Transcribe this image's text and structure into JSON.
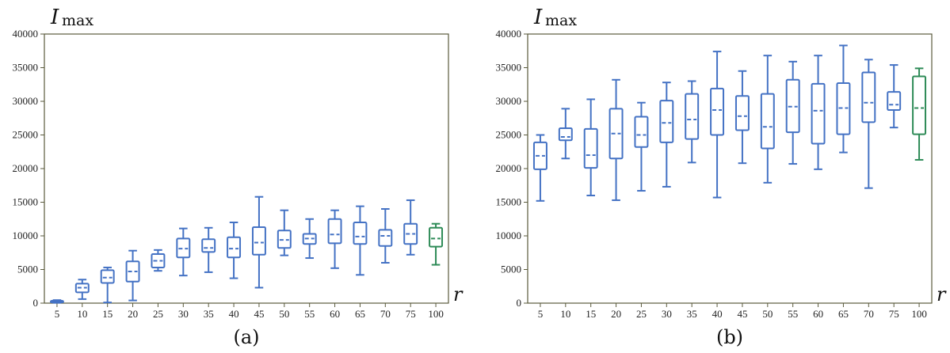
{
  "colors": {
    "box": "#4472C4",
    "box_last": "#2E8B57",
    "frame": "#5a5a3c"
  },
  "chart_data": [
    {
      "panel": "(a)",
      "type": "box",
      "ylabel_main": "I",
      "ylabel_sub": "max",
      "xlabel": "r",
      "ylim": [
        0,
        40000
      ],
      "yticks": [
        0,
        5000,
        10000,
        15000,
        20000,
        25000,
        30000,
        35000,
        40000
      ],
      "categories": [
        "5",
        "10",
        "15",
        "20",
        "25",
        "30",
        "35",
        "40",
        "45",
        "50",
        "55",
        "60",
        "65",
        "70",
        "75",
        "100"
      ],
      "boxes": [
        {
          "min": 50,
          "q1": 150,
          "median": 250,
          "q3": 350,
          "max": 450
        },
        {
          "min": 600,
          "q1": 1600,
          "median": 2300,
          "q3": 2900,
          "max": 3500
        },
        {
          "min": 100,
          "q1": 3000,
          "median": 3800,
          "q3": 4900,
          "max": 5300
        },
        {
          "min": 400,
          "q1": 3200,
          "median": 4700,
          "q3": 6200,
          "max": 7800
        },
        {
          "min": 4800,
          "q1": 5300,
          "median": 6300,
          "q3": 7300,
          "max": 7900
        },
        {
          "min": 4100,
          "q1": 6800,
          "median": 8100,
          "q3": 9600,
          "max": 11100
        },
        {
          "min": 4600,
          "q1": 7600,
          "median": 8200,
          "q3": 9500,
          "max": 11200
        },
        {
          "min": 3700,
          "q1": 6800,
          "median": 8100,
          "q3": 9800,
          "max": 12000
        },
        {
          "min": 2300,
          "q1": 7200,
          "median": 9000,
          "q3": 11300,
          "max": 15800
        },
        {
          "min": 7100,
          "q1": 8200,
          "median": 9400,
          "q3": 10800,
          "max": 13800
        },
        {
          "min": 6700,
          "q1": 8800,
          "median": 9600,
          "q3": 10300,
          "max": 12500
        },
        {
          "min": 5200,
          "q1": 8900,
          "median": 10200,
          "q3": 12500,
          "max": 13800
        },
        {
          "min": 4200,
          "q1": 8800,
          "median": 9900,
          "q3": 12000,
          "max": 14400
        },
        {
          "min": 6000,
          "q1": 8500,
          "median": 10000,
          "q3": 10900,
          "max": 14000
        },
        {
          "min": 7200,
          "q1": 8800,
          "median": 10300,
          "q3": 11800,
          "max": 15300
        },
        {
          "min": 5700,
          "q1": 8400,
          "median": 9600,
          "q3": 11200,
          "max": 11800
        }
      ],
      "caption": "(a)"
    },
    {
      "panel": "(b)",
      "type": "box",
      "ylabel_main": "I",
      "ylabel_sub": "max",
      "xlabel": "r",
      "ylim": [
        0,
        40000
      ],
      "yticks": [
        0,
        5000,
        10000,
        15000,
        20000,
        25000,
        30000,
        35000,
        40000
      ],
      "categories": [
        "5",
        "10",
        "15",
        "20",
        "25",
        "30",
        "35",
        "40",
        "45",
        "50",
        "55",
        "60",
        "65",
        "70",
        "75",
        "100"
      ],
      "boxes": [
        {
          "min": 15200,
          "q1": 19900,
          "median": 21900,
          "q3": 23900,
          "max": 25000
        },
        {
          "min": 21500,
          "q1": 24200,
          "median": 24700,
          "q3": 26000,
          "max": 28900
        },
        {
          "min": 16000,
          "q1": 20100,
          "median": 22000,
          "q3": 25900,
          "max": 30300
        },
        {
          "min": 15300,
          "q1": 21500,
          "median": 25200,
          "q3": 28900,
          "max": 33200
        },
        {
          "min": 16700,
          "q1": 23200,
          "median": 25000,
          "q3": 27700,
          "max": 29800
        },
        {
          "min": 17300,
          "q1": 23900,
          "median": 26800,
          "q3": 30100,
          "max": 32800
        },
        {
          "min": 20900,
          "q1": 24400,
          "median": 27300,
          "q3": 31100,
          "max": 33000
        },
        {
          "min": 15700,
          "q1": 25000,
          "median": 28700,
          "q3": 31900,
          "max": 37400
        },
        {
          "min": 20800,
          "q1": 25700,
          "median": 27800,
          "q3": 30800,
          "max": 34500
        },
        {
          "min": 17900,
          "q1": 23000,
          "median": 26200,
          "q3": 31100,
          "max": 36800
        },
        {
          "min": 20700,
          "q1": 25400,
          "median": 29200,
          "q3": 33200,
          "max": 35900
        },
        {
          "min": 19900,
          "q1": 23700,
          "median": 28600,
          "q3": 32600,
          "max": 36800
        },
        {
          "min": 22400,
          "q1": 25100,
          "median": 29000,
          "q3": 32700,
          "max": 38300
        },
        {
          "min": 17100,
          "q1": 26900,
          "median": 29800,
          "q3": 34300,
          "max": 36200
        },
        {
          "min": 26100,
          "q1": 28700,
          "median": 29500,
          "q3": 31400,
          "max": 35400
        },
        {
          "min": 21300,
          "q1": 25100,
          "median": 29000,
          "q3": 33700,
          "max": 34900
        }
      ],
      "caption": "(b)"
    }
  ]
}
